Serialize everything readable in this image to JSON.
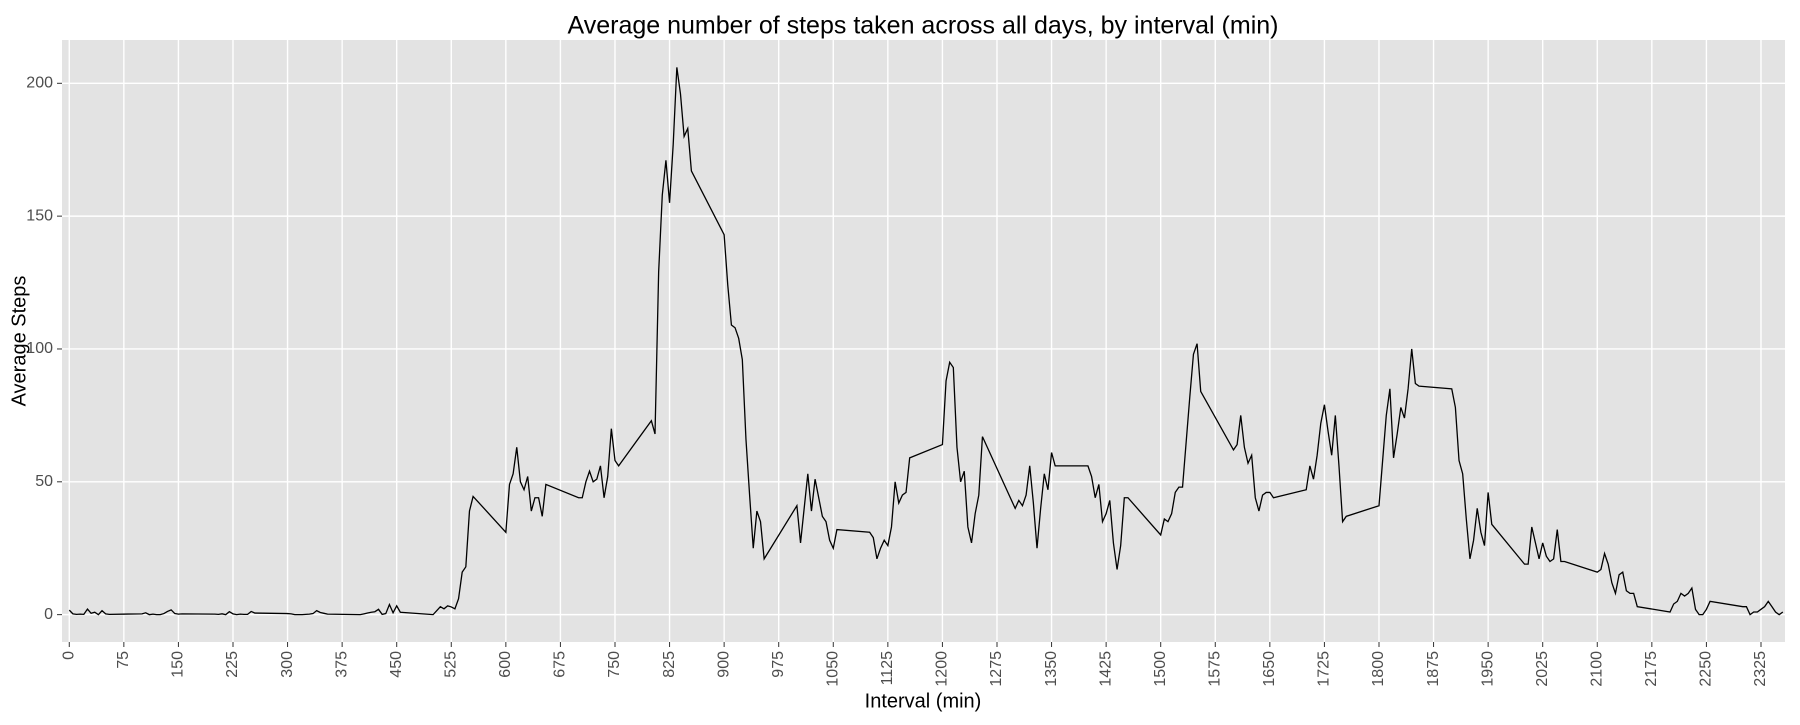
{
  "chart_data": {
    "type": "line",
    "title": "Average number of steps taken across all days, by interval (min)",
    "x_label": "Interval (min)",
    "y_label": "Average Steps",
    "color": "#000000",
    "grid": true,
    "xlim": [
      -10,
      2358
    ],
    "ylim": [
      -10.3,
      216.3
    ],
    "xticks": [
      0,
      75,
      150,
      225,
      300,
      375,
      450,
      525,
      600,
      675,
      750,
      825,
      900,
      975,
      1050,
      1125,
      1200,
      1275,
      1350,
      1425,
      1500,
      1575,
      1650,
      1725,
      1800,
      1875,
      1950,
      2025,
      2100,
      2175,
      2250,
      2325
    ],
    "yticks": [
      0,
      50,
      100,
      150,
      200
    ],
    "x": [
      0,
      5,
      10,
      15,
      20,
      25,
      30,
      35,
      40,
      45,
      50,
      55,
      100,
      105,
      110,
      115,
      120,
      125,
      130,
      135,
      140,
      145,
      150,
      155,
      200,
      205,
      210,
      215,
      220,
      225,
      230,
      235,
      240,
      245,
      250,
      255,
      300,
      305,
      310,
      315,
      320,
      325,
      330,
      335,
      340,
      345,
      350,
      355,
      400,
      405,
      410,
      415,
      420,
      425,
      430,
      435,
      440,
      445,
      450,
      455,
      500,
      505,
      510,
      515,
      520,
      525,
      530,
      535,
      540,
      545,
      550,
      555,
      600,
      605,
      610,
      615,
      620,
      625,
      630,
      635,
      640,
      645,
      650,
      655,
      700,
      705,
      710,
      715,
      720,
      725,
      730,
      735,
      740,
      745,
      750,
      755,
      800,
      805,
      810,
      815,
      820,
      825,
      830,
      835,
      840,
      845,
      850,
      855,
      900,
      905,
      910,
      915,
      920,
      925,
      930,
      935,
      940,
      945,
      950,
      955,
      1000,
      1005,
      1010,
      1015,
      1020,
      1025,
      1030,
      1035,
      1040,
      1045,
      1050,
      1055,
      1100,
      1105,
      1110,
      1115,
      1120,
      1125,
      1130,
      1135,
      1140,
      1145,
      1150,
      1155,
      1200,
      1205,
      1210,
      1215,
      1220,
      1225,
      1230,
      1235,
      1240,
      1245,
      1250,
      1255,
      1300,
      1305,
      1310,
      1315,
      1320,
      1325,
      1330,
      1335,
      1340,
      1345,
      1350,
      1355,
      1400,
      1405,
      1410,
      1415,
      1420,
      1425,
      1430,
      1435,
      1440,
      1445,
      1450,
      1455,
      1500,
      1505,
      1510,
      1515,
      1520,
      1525,
      1530,
      1535,
      1540,
      1545,
      1550,
      1555,
      1600,
      1605,
      1610,
      1615,
      1620,
      1625,
      1630,
      1635,
      1640,
      1645,
      1650,
      1655,
      1700,
      1705,
      1710,
      1715,
      1720,
      1725,
      1730,
      1735,
      1740,
      1745,
      1750,
      1755,
      1800,
      1805,
      1810,
      1815,
      1820,
      1825,
      1830,
      1835,
      1840,
      1845,
      1850,
      1855,
      1900,
      1905,
      1910,
      1915,
      1920,
      1925,
      1930,
      1935,
      1940,
      1945,
      1950,
      1955,
      2000,
      2005,
      2010,
      2015,
      2020,
      2025,
      2030,
      2035,
      2040,
      2045,
      2050,
      2055,
      2100,
      2105,
      2110,
      2115,
      2120,
      2125,
      2130,
      2135,
      2140,
      2145,
      2150,
      2155,
      2200,
      2205,
      2210,
      2215,
      2220,
      2225,
      2230,
      2235,
      2240,
      2245,
      2250,
      2255,
      2300,
      2305,
      2310,
      2315,
      2320,
      2325,
      2330,
      2335,
      2340,
      2345,
      2350,
      2355
    ],
    "values": [
      1.7,
      0.3,
      0.1,
      0.2,
      0.1,
      2.1,
      0.5,
      0.9,
      0,
      1.5,
      0.3,
      0.1,
      0.3,
      0.7,
      0,
      0.2,
      0,
      0,
      0.4,
      1.2,
      1.8,
      0.4,
      0.2,
      0.3,
      0.2,
      0.1,
      0.3,
      0,
      1.1,
      0.3,
      0,
      0.2,
      0.1,
      0.1,
      1.2,
      0.6,
      0.4,
      0.3,
      0,
      0,
      0,
      0.1,
      0.2,
      0.4,
      1.5,
      0.8,
      0.5,
      0.2,
      0,
      0.3,
      0.6,
      0.9,
      1.1,
      2.0,
      0.1,
      0.4,
      3.8,
      0.7,
      3.3,
      0.9,
      0,
      1.5,
      3.0,
      2.2,
      3.3,
      2.9,
      2.2,
      6.0,
      16,
      18,
      39,
      44.5,
      31,
      49,
      53,
      63,
      50,
      47,
      52,
      39,
      44,
      44,
      37,
      49,
      44,
      44,
      50,
      54,
      50,
      51,
      56,
      44,
      52,
      70,
      58,
      56,
      73,
      68,
      129,
      158,
      171,
      155,
      177,
      206,
      196,
      180,
      183,
      167,
      143,
      124,
      109,
      108,
      104,
      96,
      66,
      45,
      25,
      39,
      35,
      21,
      41,
      27,
      40,
      53,
      39,
      51,
      44,
      37,
      35,
      28,
      25,
      32,
      31,
      29,
      21,
      25,
      28,
      26,
      33,
      50,
      42,
      45,
      46,
      59,
      64,
      88,
      95,
      93,
      63,
      50,
      54,
      33,
      27,
      38,
      45,
      67,
      40,
      43,
      41,
      45,
      56,
      42,
      25,
      40,
      53,
      47,
      61,
      56,
      56,
      52,
      44,
      49,
      35,
      38,
      43,
      27,
      17,
      26,
      44,
      44,
      30,
      36,
      35,
      38,
      46,
      48,
      48,
      65,
      82,
      98,
      102,
      84,
      62,
      64,
      75,
      63,
      57,
      60,
      44,
      39,
      45,
      46,
      46,
      44,
      47,
      56,
      51,
      60,
      72,
      79,
      69,
      60,
      75,
      56,
      35,
      37,
      41,
      58,
      75,
      85,
      59,
      68,
      78,
      74,
      85,
      100,
      87,
      86,
      85,
      78,
      58,
      53,
      36,
      21,
      28,
      40,
      31,
      26,
      46,
      34,
      19,
      19,
      33,
      27,
      21,
      27,
      22,
      20,
      21,
      32,
      20,
      20,
      16,
      17,
      23,
      19,
      12,
      8,
      15,
      16,
      9,
      8,
      8,
      3,
      1,
      4,
      5,
      8,
      7,
      8,
      10,
      2,
      0,
      0,
      2,
      5,
      3,
      3,
      0,
      1,
      1,
      2,
      3,
      5,
      3,
      1,
      0,
      1
    ]
  }
}
